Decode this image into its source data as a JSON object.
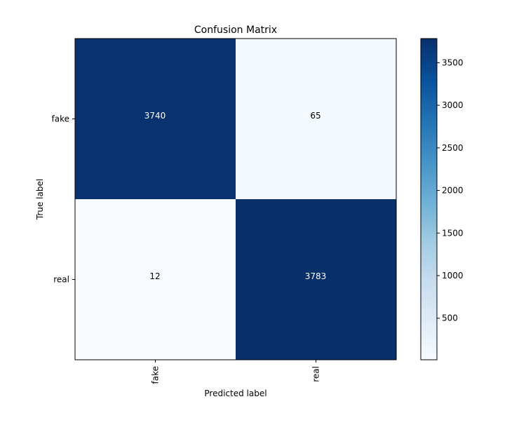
{
  "chart_data": {
    "type": "heatmap",
    "title": "Confusion Matrix",
    "xlabel": "Predicted label",
    "ylabel": "True label",
    "x_categories": [
      "fake",
      "real"
    ],
    "y_categories": [
      "fake",
      "real"
    ],
    "matrix": [
      [
        3740,
        65
      ],
      [
        12,
        3783
      ]
    ],
    "colormap": "Blues",
    "colorbar": {
      "vmin": 12,
      "vmax": 3783,
      "ticks": [
        500,
        1000,
        1500,
        2000,
        2500,
        3000,
        3500
      ],
      "tick_labels": [
        "500",
        "1000",
        "1500",
        "2000",
        "2500",
        "3000",
        "3500"
      ]
    },
    "text_color_dark": "#ffffff",
    "text_color_light": "#000000"
  }
}
